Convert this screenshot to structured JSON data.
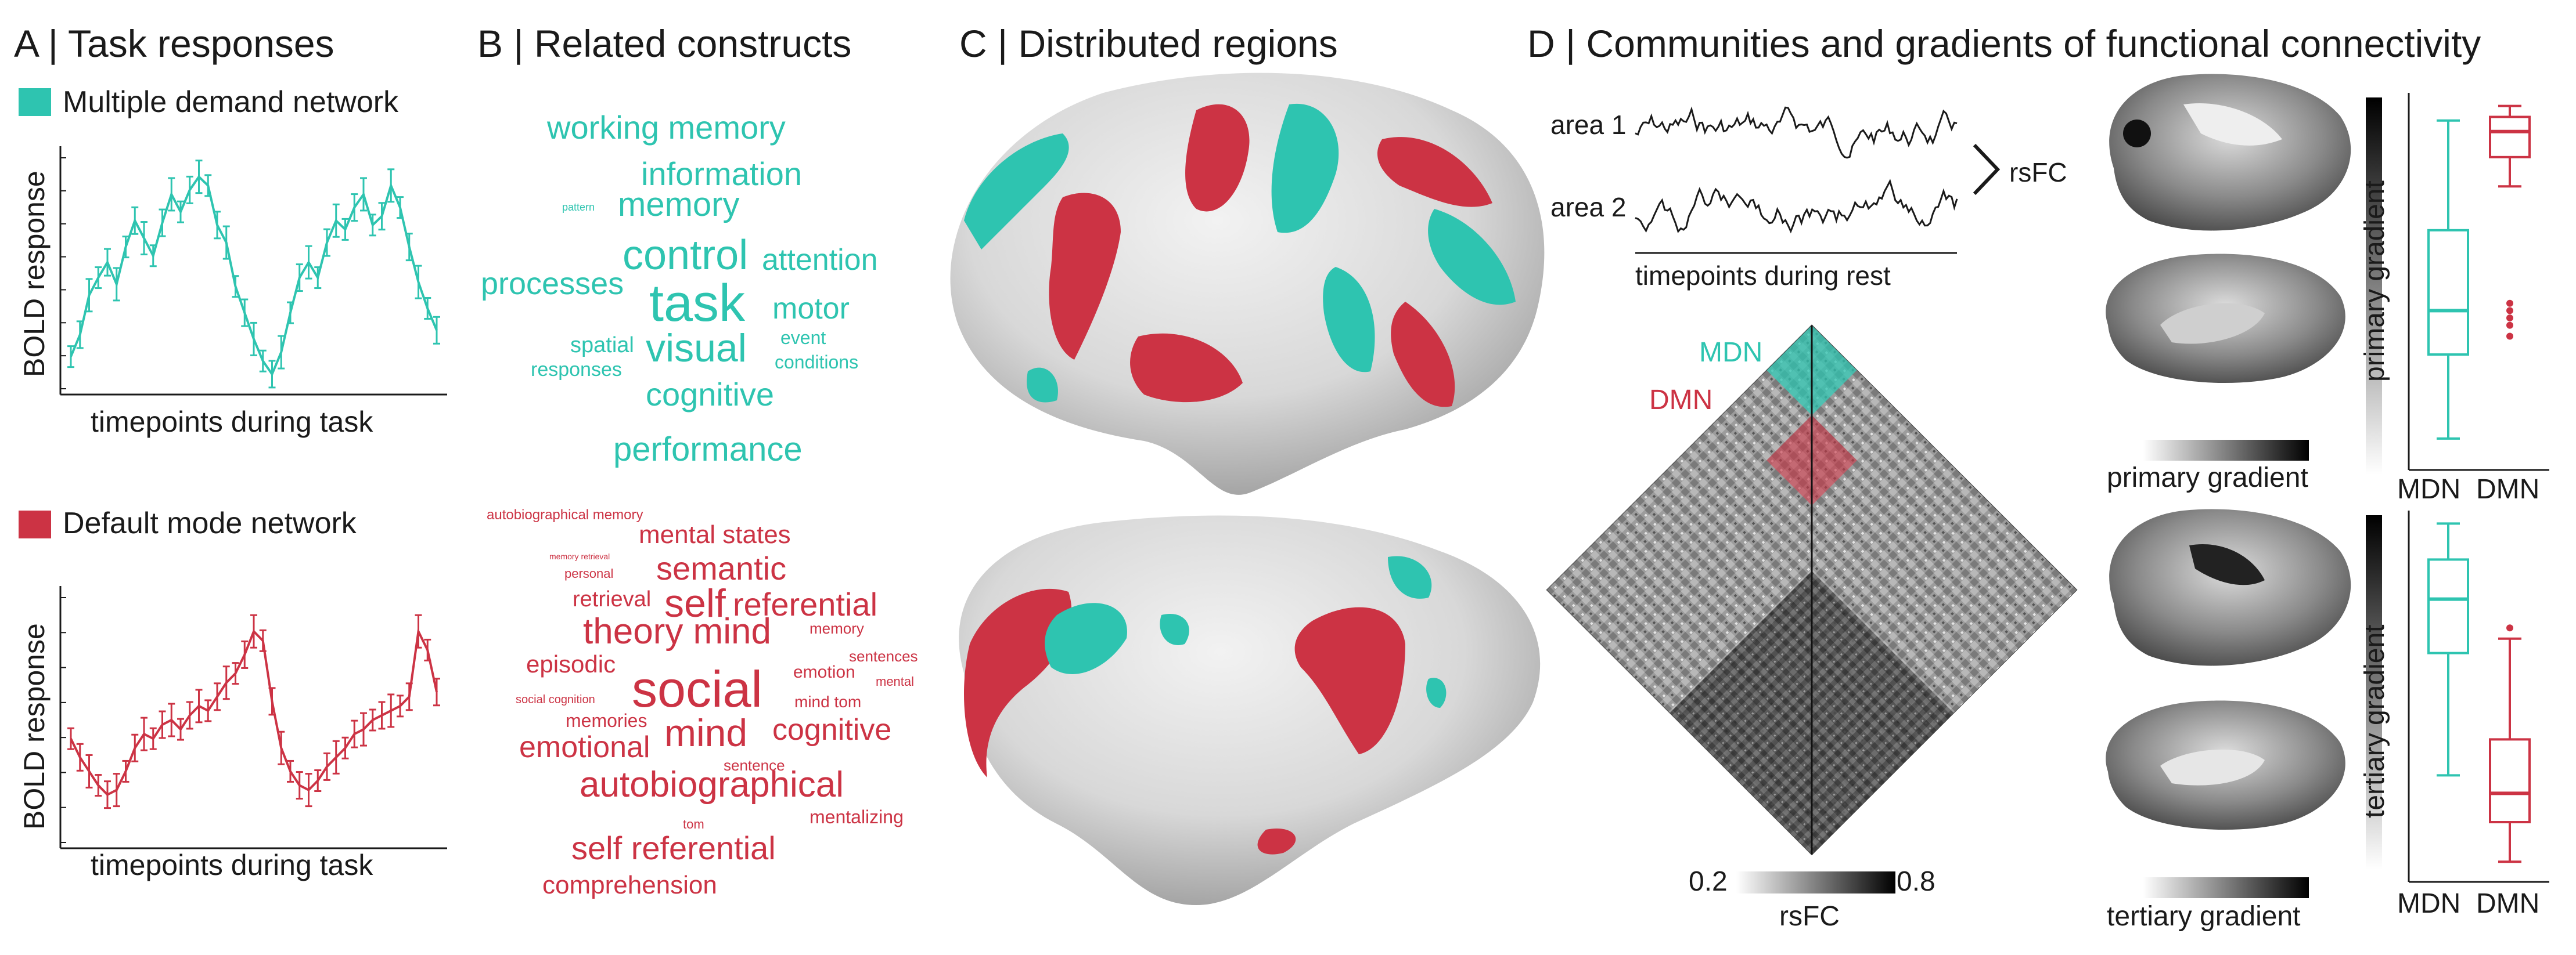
{
  "panels": {
    "a": {
      "title": "A | Task responses",
      "mdn_legend": "Multiple demand network",
      "dmn_legend": "Default mode network",
      "ylabel": "BOLD response",
      "xlabel": "timepoints during task"
    },
    "b": {
      "title": "B | Related constructs",
      "mdn_words": [
        "working memory",
        "information",
        "memory",
        "pattern",
        "control",
        "attention",
        "processes",
        "task",
        "motor",
        "visual",
        "event",
        "spatial",
        "conditions",
        "responses",
        "cognitive",
        "performance"
      ],
      "dmn_words": [
        "autobiographical memory",
        "mental states",
        "semantic",
        "memory retrieval",
        "personal",
        "self",
        "referential",
        "retrieval",
        "theory mind",
        "memory",
        "episodic",
        "sentences",
        "emotion",
        "mental",
        "social",
        "social cognition",
        "mind tom",
        "memories",
        "mind",
        "cognitive",
        "emotional",
        "sentence",
        "autobiographical",
        "mentalizing",
        "tom",
        "self referential",
        "comprehension"
      ]
    },
    "c": {
      "title": "C | Distributed regions"
    },
    "d": {
      "title": "D | Communities and gradients of functional connectivity",
      "area1": "area 1",
      "area2": "area 2",
      "rsfc": "rsFC",
      "rest_label": "timepoints during rest",
      "mdn": "MDN",
      "dmn": "DMN",
      "cbar_min": "0.2",
      "cbar_max": "0.8",
      "cbar_label": "rsFC",
      "primary_gradient": "primary gradient",
      "tertiary_gradient": "tertiary gradient",
      "box_primary_ylabel": "primary gradient",
      "box_tertiary_ylabel": "tertiary gradient",
      "box_x_mdn": "MDN",
      "box_x_dmn": "DMN"
    }
  },
  "colors": {
    "mdn": "#2ec4b0",
    "dmn": "#cc3344",
    "text": "#1a1a1a"
  },
  "chart_data": [
    {
      "type": "line",
      "panel": "A (top)",
      "xlabel": "timepoints during task",
      "ylabel": "BOLD response",
      "series": [
        {
          "name": "Multiple demand network",
          "values": [
            0.12,
            0.22,
            0.4,
            0.48,
            0.55,
            0.45,
            0.62,
            0.74,
            0.66,
            0.58,
            0.73,
            0.86,
            0.78,
            0.88,
            0.94,
            0.9,
            0.72,
            0.64,
            0.44,
            0.32,
            0.2,
            0.1,
            0.04,
            0.14,
            0.32,
            0.48,
            0.55,
            0.48,
            0.64,
            0.74,
            0.7,
            0.8,
            0.86,
            0.72,
            0.76,
            0.9,
            0.8,
            0.62,
            0.46,
            0.34,
            0.24
          ]
        }
      ]
    },
    {
      "type": "line",
      "panel": "A (bottom)",
      "xlabel": "timepoints during task",
      "ylabel": "BOLD response",
      "series": [
        {
          "name": "Default mode network",
          "values": [
            0.42,
            0.34,
            0.28,
            0.22,
            0.18,
            0.2,
            0.28,
            0.38,
            0.44,
            0.42,
            0.48,
            0.5,
            0.46,
            0.52,
            0.56,
            0.54,
            0.6,
            0.66,
            0.7,
            0.78,
            0.88,
            0.84,
            0.58,
            0.38,
            0.28,
            0.22,
            0.2,
            0.24,
            0.3,
            0.34,
            0.38,
            0.44,
            0.46,
            0.5,
            0.52,
            0.54,
            0.56,
            0.6,
            0.88,
            0.8,
            0.62
          ]
        }
      ]
    },
    {
      "type": "box",
      "panel": "D (primary gradient)",
      "ylabel": "primary gradient",
      "categories": [
        "MDN",
        "DMN"
      ],
      "boxes": [
        {
          "whisker_low": 0.07,
          "q1": 0.3,
          "median": 0.42,
          "q3": 0.64,
          "whisker_high": 0.94
        },
        {
          "whisker_low": 0.76,
          "q1": 0.84,
          "median": 0.91,
          "q3": 0.95,
          "whisker_high": 0.98,
          "outliers": [
            0.35,
            0.38,
            0.4,
            0.42,
            0.44
          ]
        }
      ]
    },
    {
      "type": "box",
      "panel": "D (tertiary gradient)",
      "ylabel": "tertiary gradient",
      "categories": [
        "MDN",
        "DMN"
      ],
      "boxes": [
        {
          "whisker_low": 0.28,
          "q1": 0.62,
          "median": 0.77,
          "q3": 0.88,
          "whisker_high": 0.98
        },
        {
          "whisker_low": 0.04,
          "q1": 0.15,
          "median": 0.23,
          "q3": 0.38,
          "whisker_high": 0.66,
          "outliers": [
            0.69
          ]
        }
      ]
    }
  ]
}
